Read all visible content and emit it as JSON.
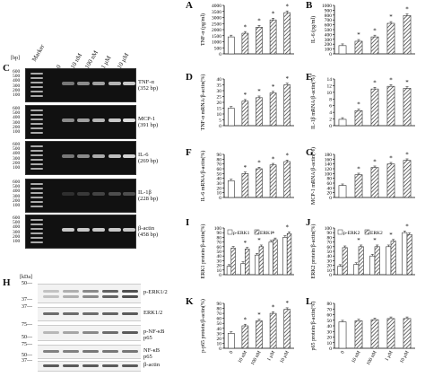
{
  "panel_letters": {
    "A": "A",
    "B": "B",
    "C": "C",
    "D": "D",
    "E": "E",
    "F": "F",
    "G": "G",
    "H": "H",
    "I": "I",
    "J": "J",
    "K": "K",
    "L": "L"
  },
  "gel": {
    "bp_unit": "[bp]",
    "bp_ticks": [
      "600",
      "500",
      "400",
      "300",
      "200",
      "100"
    ],
    "lanes": [
      "Marker",
      "0",
      "10 nM",
      "100 nM",
      "1 μM",
      "10 μM"
    ],
    "rows": [
      {
        "name": "TNF-α",
        "size": "(352 bp)"
      },
      {
        "name": "MCP-1",
        "size": "(391 bp)"
      },
      {
        "name": "IL-6",
        "size": "(269 bp)"
      },
      {
        "name": "IL-1β",
        "size": "(228 bp)"
      },
      {
        "name": "β-actin",
        "size": "(458 bp)"
      }
    ]
  },
  "western": {
    "kda_unit": "[kDa]",
    "strips": [
      {
        "label": "p-ERK1/2",
        "kda": [
          "50",
          "37"
        ]
      },
      {
        "label": "ERK1/2",
        "kda": [
          "37"
        ]
      },
      {
        "label": "p-NF-κB\np65",
        "kda": [
          "75",
          "50"
        ]
      },
      {
        "label": "NF-κB\np65",
        "kda": [
          "75",
          "50"
        ]
      },
      {
        "label": "β-actin",
        "kda": [
          "37"
        ]
      }
    ]
  },
  "x_categories": [
    "0",
    "10 nM",
    "100 nM",
    "1 μM",
    "10 μM"
  ],
  "chart_data": [
    {
      "id": "A",
      "type": "bar",
      "ylabel": "TNF-α (pg/ml)",
      "ylim": [
        0,
        4000
      ],
      "yticks": [
        0,
        500,
        1000,
        1500,
        2000,
        2500,
        3000,
        3500,
        4000
      ],
      "values": [
        1400,
        1700,
        2200,
        2800,
        3400
      ],
      "sig": [
        false,
        true,
        true,
        true,
        true
      ]
    },
    {
      "id": "B",
      "type": "bar",
      "ylabel": "IL-6 (pg/ml)",
      "ylim": [
        0,
        1000
      ],
      "yticks": [
        0,
        100,
        200,
        300,
        400,
        500,
        600,
        700,
        800,
        900,
        1000
      ],
      "values": [
        170,
        260,
        350,
        630,
        790
      ],
      "sig": [
        false,
        true,
        true,
        true,
        true
      ]
    },
    {
      "id": "D",
      "type": "bar",
      "ylabel": "TNF-α mRNA/β-actin(%)",
      "ylim": [
        0,
        40
      ],
      "yticks": [
        0,
        5,
        10,
        15,
        20,
        25,
        30,
        35,
        40
      ],
      "values": [
        15,
        21,
        24,
        28,
        35
      ],
      "sig": [
        false,
        true,
        true,
        true,
        true
      ]
    },
    {
      "id": "E",
      "type": "bar",
      "ylabel": "IL-1β mRNA/β-actin(%)",
      "ylim": [
        0,
        14
      ],
      "yticks": [
        0,
        2,
        4,
        6,
        8,
        10,
        12,
        14
      ],
      "values": [
        1.9,
        4.5,
        11,
        11.8,
        11.2
      ],
      "sig": [
        false,
        true,
        true,
        true,
        true
      ]
    },
    {
      "id": "F",
      "type": "bar",
      "ylabel": "IL-6 mRNA/β-actin(%)",
      "ylim": [
        0,
        90
      ],
      "yticks": [
        0,
        10,
        20,
        30,
        40,
        50,
        60,
        70,
        80,
        90
      ],
      "values": [
        35,
        50,
        60,
        68,
        75
      ],
      "sig": [
        false,
        true,
        true,
        true,
        true
      ]
    },
    {
      "id": "G",
      "type": "bar",
      "ylabel": "MCP-1 mRNA/β-actin(%)",
      "ylim": [
        0,
        180
      ],
      "yticks": [
        0,
        20,
        40,
        60,
        80,
        100,
        120,
        140,
        160,
        180
      ],
      "values": [
        50,
        95,
        125,
        140,
        155
      ],
      "sig": [
        false,
        true,
        true,
        true,
        true
      ]
    },
    {
      "id": "I",
      "type": "bar",
      "ylabel": "ERK1 protein/β-actin(%)",
      "ylim": [
        0,
        100
      ],
      "yticks": [
        0,
        10,
        20,
        30,
        40,
        50,
        60,
        70,
        80,
        90,
        100
      ],
      "legend": [
        "p-ERK1",
        "ERK1"
      ],
      "legend_position": "top",
      "series": [
        {
          "name": "p-ERK1",
          "values": [
            18,
            24,
            42,
            70,
            80
          ]
        },
        {
          "name": "ERK1",
          "values": [
            57,
            55,
            60,
            75,
            88
          ]
        }
      ],
      "sig": [
        false,
        true,
        true,
        true,
        true
      ]
    },
    {
      "id": "J",
      "type": "bar",
      "ylabel": "ERK2 protein/β-actin(%)",
      "ylim": [
        0,
        100
      ],
      "yticks": [
        0,
        10,
        20,
        30,
        40,
        50,
        60,
        70,
        80,
        90,
        100
      ],
      "legend": [
        "p-ERK2",
        "ERK2"
      ],
      "legend_position": "top",
      "series": [
        {
          "name": "p-ERK2",
          "values": [
            18,
            22,
            40,
            60,
            90
          ]
        },
        {
          "name": "ERK2",
          "values": [
            58,
            60,
            60,
            72,
            86
          ]
        }
      ],
      "sig": [
        false,
        true,
        true,
        true,
        true
      ]
    },
    {
      "id": "K",
      "type": "bar",
      "ylabel": "p-p65 protein/β-actin(%)",
      "ylim": [
        0,
        90
      ],
      "yticks": [
        0,
        10,
        20,
        30,
        40,
        50,
        60,
        70,
        80,
        90
      ],
      "values": [
        30,
        45,
        55,
        70,
        78
      ],
      "sig": [
        false,
        true,
        true,
        true,
        true
      ]
    },
    {
      "id": "L",
      "type": "bar",
      "ylabel": "p65 protein/β-actin(%)",
      "ylim": [
        0,
        80
      ],
      "yticks": [
        0,
        10,
        20,
        30,
        40,
        50,
        60,
        70,
        80
      ],
      "values": [
        47,
        49,
        51,
        53,
        53
      ],
      "sig": [
        false,
        false,
        false,
        false,
        false
      ]
    }
  ]
}
